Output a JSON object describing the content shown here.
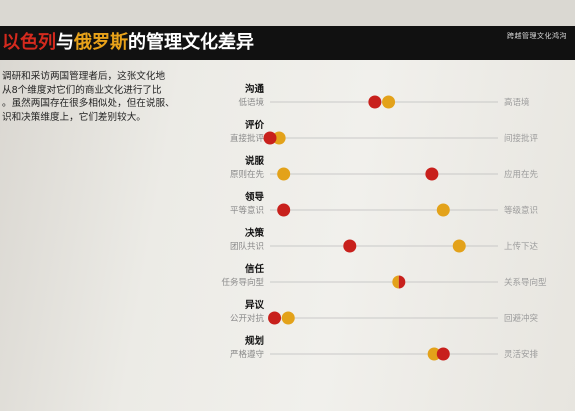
{
  "header": {
    "title_part1": "以色列",
    "title_part2": "与",
    "title_part3": "俄罗斯",
    "title_part4": "的管理文化差异",
    "section_label": "跨越管理文化鸿沟"
  },
  "intro_lines": [
    "调研和采访两国管理者后，这张文化地",
    "从8个维度对它们的商业文化进行了比",
    "。虽然两国存在很多相似处，但在说服、",
    "识和决策维度上，它们差别较大。"
  ],
  "colors": {
    "israel": "#c8201c",
    "russia": "#e3a21a",
    "line": "#bdbdbd"
  },
  "chart_data": {
    "type": "scatter",
    "series": [
      {
        "color": "#c8201c"
      },
      {
        "color": "#e3a21a"
      }
    ],
    "dimensions": [
      {
        "title": "沟通",
        "left": "低语境",
        "right": "高语境",
        "red": 0.46,
        "orange": 0.52
      },
      {
        "title": "评价",
        "left": "直接批评",
        "right": "间接批评",
        "red": 0.0,
        "orange": 0.04
      },
      {
        "title": "说服",
        "left": "原则在先",
        "right": "应用在先",
        "red": 0.71,
        "orange": 0.06
      },
      {
        "title": "领导",
        "left": "平等意识",
        "right": "等级意识",
        "red": 0.06,
        "orange": 0.76
      },
      {
        "title": "决策",
        "left": "团队共识",
        "right": "上传下达",
        "red": 0.35,
        "orange": 0.83
      },
      {
        "title": "信任",
        "left": "任务导向型",
        "right": "关系导向型",
        "red": 0.57,
        "orange": 0.56
      },
      {
        "title": "异议",
        "left": "公开对抗",
        "right": "回避冲突",
        "red": 0.02,
        "orange": 0.08
      },
      {
        "title": "规划",
        "left": "严格遵守",
        "right": "灵活安排",
        "red": 0.76,
        "orange": 0.72
      }
    ]
  }
}
